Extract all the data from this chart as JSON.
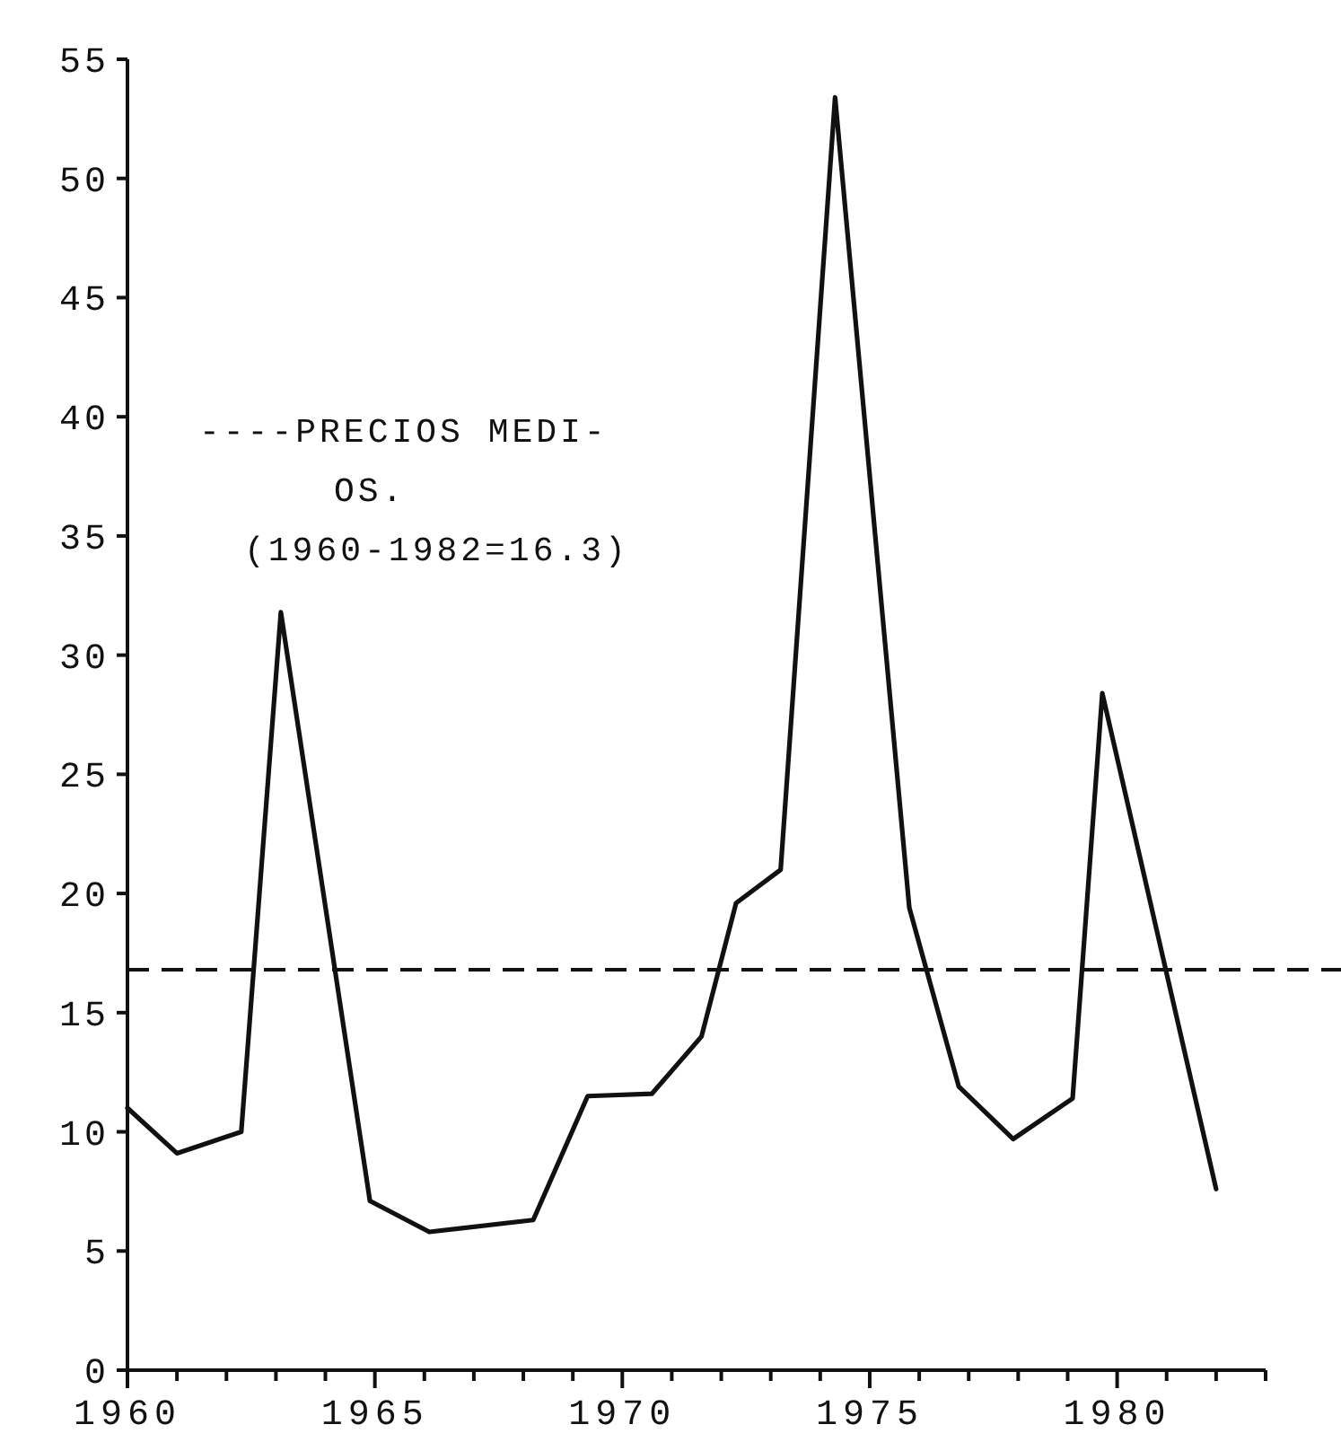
{
  "chart_data": {
    "type": "line",
    "x": [
      1960,
      1961,
      1962.3,
      1963.1,
      1964.9,
      1966.1,
      1968.2,
      1969.3,
      1970.6,
      1971.6,
      1972.3,
      1973.2,
      1974.3,
      1975.8,
      1976.8,
      1977.9,
      1979.1,
      1979.7,
      1982
    ],
    "series": [
      {
        "color": "#111111",
        "values": [
          11.0,
          9.1,
          10.0,
          31.8,
          7.1,
          5.8,
          6.3,
          11.5,
          11.6,
          14.0,
          19.6,
          21.0,
          53.4,
          19.4,
          11.9,
          9.7,
          11.4,
          28.4,
          7.6
        ]
      }
    ],
    "xlim": [
      1960,
      1983
    ],
    "xticks": [
      1960,
      {
        "value": 1961,
        "label": null
      },
      {
        "value": 1962,
        "label": null
      },
      {
        "value": 1963,
        "label": null
      },
      {
        "value": 1964,
        "label": null
      },
      1965,
      {
        "value": 1966,
        "label": null
      },
      {
        "value": 1967,
        "label": null
      },
      {
        "value": 1968,
        "label": null
      },
      {
        "value": 1969,
        "label": null
      },
      1970,
      {
        "value": 1971,
        "label": null
      },
      {
        "value": 1972,
        "label": null
      },
      {
        "value": 1973,
        "label": null
      },
      {
        "value": 1974,
        "label": null
      },
      1975,
      {
        "value": 1976,
        "label": null
      },
      {
        "value": 1977,
        "label": null
      },
      {
        "value": 1978,
        "label": null
      },
      {
        "value": 1979,
        "label": null
      },
      1980,
      {
        "value": 1981,
        "label": null
      },
      {
        "value": 1982,
        "label": null
      },
      {
        "value": 1983,
        "label": null
      }
    ],
    "ylim": [
      0,
      55
    ],
    "yticks": [
      0,
      5,
      10,
      15,
      20,
      25,
      30,
      35,
      40,
      45,
      50,
      55
    ],
    "ref_lines": [
      {
        "axis": "y",
        "value": 16.8,
        "line_style": "dashed",
        "color": "#111111"
      }
    ],
    "annotations": [
      "----PRECIOS MEDI-\nOS.\n(1960-1982=16.3)"
    ],
    "grid": false,
    "marker": "none",
    "line_style": "solid"
  }
}
